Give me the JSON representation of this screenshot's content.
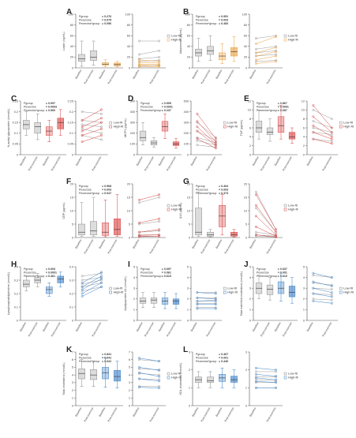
{
  "chart_data": [
    {
      "letter": "A",
      "type": "box",
      "ylabel": "Leptin (ng/mL)",
      "ylim": [
        0,
        100
      ],
      "yticks": [
        0,
        20,
        40,
        60,
        80,
        100
      ],
      "stats": [
        {
          "label": "Pgroup",
          "value": "= 0.276"
        },
        {
          "label": "Pexercise",
          "value": "= 0.075"
        },
        {
          "label": "Pexercise*group",
          "value": "= 0.096"
        }
      ],
      "color": "#e8a040",
      "categories": [
        "Baseline",
        "Post-exercise",
        "Baseline",
        "Post-exercise"
      ],
      "boxes": [
        {
          "q1": 12,
          "med": 17,
          "q3": 25,
          "lo": 3,
          "hi": 50
        },
        {
          "q1": 14,
          "med": 20,
          "q3": 32,
          "lo": 5,
          "hi": 50
        },
        {
          "q1": 5,
          "med": 7,
          "q3": 10,
          "lo": 2,
          "hi": 15
        },
        {
          "q1": 4,
          "med": 6,
          "q3": 9,
          "lo": 2,
          "hi": 12
        }
      ],
      "legend": [
        "Low-fit",
        "High-fit"
      ]
    },
    {
      "letter": "B",
      "type": "box",
      "ylabel": "Adiponectin (µg/mL)",
      "ylim": [
        0,
        100
      ],
      "yticks": [
        0,
        20,
        40,
        60,
        80,
        100
      ],
      "stats": [
        {
          "label": "Pgroup",
          "value": "= 0.951"
        },
        {
          "label": "Pexercise",
          "value": "= 0.003"
        },
        {
          "label": "Pexercise*group",
          "value": "= 0.466"
        }
      ],
      "color": "#e8a040",
      "categories": [
        "Baseline",
        "Post-exercise",
        "Baseline",
        "Post-exercise"
      ],
      "boxes": [
        {
          "q1": 22,
          "med": 28,
          "q3": 35,
          "lo": 12,
          "hi": 55
        },
        {
          "q1": 25,
          "med": 32,
          "q3": 40,
          "lo": 14,
          "hi": 60
        },
        {
          "q1": 15,
          "med": 22,
          "q3": 28,
          "lo": 8,
          "hi": 45
        },
        {
          "q1": 22,
          "med": 30,
          "q3": 38,
          "lo": 12,
          "hi": 58
        }
      ],
      "legend": [
        "Low-fit",
        "High-fit"
      ]
    },
    {
      "letter": "C",
      "type": "box",
      "ylabel": "N-acetyl glycoprotein (mmol/L)",
      "ylim": [
        0,
        0.25
      ],
      "yticks": [
        0,
        0.05,
        0.1,
        0.15,
        0.2,
        0.25
      ],
      "stats": [
        {
          "label": "Pgroup",
          "value": "= 0.097"
        },
        {
          "label": "Pexercise",
          "value": "= 0.0003"
        },
        {
          "label": "Pexercise*group",
          "value": "= 0.960"
        }
      ],
      "color": "#d84040",
      "categories": [
        "Baseline",
        "Post-exercise",
        "Baseline",
        "Post-exercise"
      ],
      "boxes": [
        {
          "q1": 0.12,
          "med": 0.14,
          "q3": 0.16,
          "lo": 0.09,
          "hi": 0.2
        },
        {
          "q1": 0.1,
          "med": 0.13,
          "q3": 0.15,
          "lo": 0.07,
          "hi": 0.19
        },
        {
          "q1": 0.09,
          "med": 0.11,
          "q3": 0.13,
          "lo": 0.06,
          "hi": 0.16
        },
        {
          "q1": 0.12,
          "med": 0.15,
          "q3": 0.17,
          "lo": 0.09,
          "hi": 0.21
        }
      ],
      "legend": [
        "Low-fit",
        "High-fit"
      ]
    },
    {
      "letter": "D",
      "type": "box",
      "ylabel": "MCP1 (pg/mL)",
      "ylim": [
        0,
        500
      ],
      "yticks": [
        0,
        100,
        200,
        300,
        400,
        500
      ],
      "stats": [
        {
          "label": "Pgroup",
          "value": "= 0.905"
        },
        {
          "label": "Pexercise",
          "value": "= 0.0001"
        },
        {
          "label": "Pexercise*group",
          "value": "= 0.237"
        }
      ],
      "color": "#d84040",
      "categories": [
        "Baseline",
        "Post-exercise",
        "Baseline",
        "Post-exercise"
      ],
      "boxes": [
        {
          "q1": 130,
          "med": 160,
          "q3": 220,
          "lo": 90,
          "hi": 300
        },
        {
          "q1": 90,
          "med": 110,
          "q3": 130,
          "lo": 70,
          "hi": 160
        },
        {
          "q1": 220,
          "med": 260,
          "q3": 310,
          "lo": 150,
          "hi": 380
        },
        {
          "q1": 85,
          "med": 100,
          "q3": 120,
          "lo": 60,
          "hi": 150
        }
      ],
      "legend": [
        "Low-fit",
        "High-fit"
      ]
    },
    {
      "letter": "E",
      "type": "box",
      "ylabel": "TNF (pg/mL)",
      "ylim": [
        0,
        12
      ],
      "yticks": [
        0,
        2,
        4,
        6,
        8,
        10,
        12
      ],
      "stats": [
        {
          "label": "Pgroup",
          "value": "= 0.867"
        },
        {
          "label": "Pexercise",
          "value": "= 0.0001"
        },
        {
          "label": "Pexercise*group",
          "value": "= 0.057"
        }
      ],
      "color": "#d84040",
      "categories": [
        "Baseline",
        "Post-exercise",
        "Baseline",
        "Post-exercise"
      ],
      "boxes": [
        {
          "q1": 5,
          "med": 6,
          "q3": 7.5,
          "lo": 3.5,
          "hi": 10
        },
        {
          "q1": 4.5,
          "med": 5,
          "q3": 6,
          "lo": 3,
          "hi": 8
        },
        {
          "q1": 5,
          "med": 6.5,
          "q3": 8.5,
          "lo": 3.5,
          "hi": 11
        },
        {
          "q1": 3.5,
          "med": 4,
          "q3": 5,
          "lo": 2.5,
          "hi": 6
        }
      ],
      "legend": [
        "Low-fit",
        "High-fit"
      ]
    },
    {
      "letter": "F",
      "type": "box",
      "ylabel": "CRP (µg/mL)",
      "ylim": [
        0,
        20
      ],
      "yticks": [
        0,
        5,
        10,
        15,
        20
      ],
      "stats": [
        {
          "label": "Pgroup",
          "value": "= 0.568"
        },
        {
          "label": "Pexercise",
          "value": "= 0.003"
        },
        {
          "label": "Pexercise*group",
          "value": "= 0.047"
        }
      ],
      "color": "#d84040",
      "categories": [
        "Baseline",
        "Post-exercise",
        "Baseline",
        "Post-exercise"
      ],
      "boxes": [
        {
          "q1": 1,
          "med": 2,
          "q3": 5,
          "lo": 0.5,
          "hi": 13
        },
        {
          "q1": 1,
          "med": 2.5,
          "q3": 6,
          "lo": 0.5,
          "hi": 15
        },
        {
          "q1": 0.8,
          "med": 2,
          "q3": 5.5,
          "lo": 0.3,
          "hi": 14
        },
        {
          "q1": 1,
          "med": 3,
          "q3": 7,
          "lo": 0.5,
          "hi": 16
        }
      ],
      "legend": [
        "Low-fit",
        "High-fit"
      ]
    },
    {
      "letter": "G",
      "type": "box",
      "ylabel": "IL10 (pg/mL)",
      "ylim": [
        0,
        20
      ],
      "yticks": [
        0,
        5,
        10,
        15,
        20
      ],
      "stats": [
        {
          "label": "Pgroup",
          "value": "= 0.464"
        },
        {
          "label": "Pexercise",
          "value": "= 0.003"
        },
        {
          "label": "Pexercise*group",
          "value": "= 0.373"
        }
      ],
      "color": "#d84040",
      "categories": [
        "Baseline",
        "Post-exercise",
        "Baseline",
        "Post-exercise"
      ],
      "boxes": [
        {
          "q1": 1,
          "med": 2,
          "q3": 11,
          "lo": 0.5,
          "hi": 17
        },
        {
          "q1": 0.5,
          "med": 1,
          "q3": 2,
          "lo": 0.2,
          "hi": 3
        },
        {
          "q1": 4,
          "med": 8,
          "q3": 12,
          "lo": 1,
          "hi": 16
        },
        {
          "q1": 0.5,
          "med": 1,
          "q3": 2,
          "lo": 0.2,
          "hi": 3
        }
      ],
      "legend": [
        "Low-fit",
        "High-fit"
      ]
    },
    {
      "letter": "H",
      "type": "box",
      "ylabel": "Lysophosphatidylcholine (mmol/L)",
      "ylim": [
        0,
        0.4
      ],
      "yticks": [
        0,
        0.1,
        0.2,
        0.3,
        0.4
      ],
      "stats": [
        {
          "label": "Pgroup",
          "value": "= 0.603"
        },
        {
          "label": "Pexercise",
          "value": "= 0.0001"
        },
        {
          "label": "Pexercise*group",
          "value": "= 0.461"
        }
      ],
      "color": "#3a7fc4",
      "categories": [
        "Baseline",
        "Post-exercise",
        "Baseline",
        "Post-exercise"
      ],
      "boxes": [
        {
          "q1": 0.25,
          "med": 0.27,
          "q3": 0.3,
          "lo": 0.22,
          "hi": 0.33
        },
        {
          "q1": 0.28,
          "med": 0.3,
          "q3": 0.32,
          "lo": 0.25,
          "hi": 0.35
        },
        {
          "q1": 0.2,
          "med": 0.23,
          "q3": 0.25,
          "lo": 0.18,
          "hi": 0.28
        },
        {
          "q1": 0.28,
          "med": 0.31,
          "q3": 0.33,
          "lo": 0.25,
          "hi": 0.36
        }
      ],
      "legend": [
        "Low-fit",
        "High-fit"
      ]
    },
    {
      "letter": "I",
      "type": "box",
      "ylabel": "Apolipoprotein A1 (mmol/L)",
      "ylim": [
        0,
        5
      ],
      "yticks": [
        0,
        1,
        2,
        3,
        4,
        5
      ],
      "stats": [
        {
          "label": "Pgroup",
          "value": "= 0.697"
        },
        {
          "label": "Pexercise",
          "value": "= 0.061"
        },
        {
          "label": "Pexercise*group",
          "value": "= 0.610"
        }
      ],
      "color": "#3a7fc4",
      "categories": [
        "Baseline",
        "Post-exercise",
        "Baseline",
        "Post-exercise"
      ],
      "boxes": [
        {
          "q1": 1.6,
          "med": 1.8,
          "q3": 2.1,
          "lo": 1.2,
          "hi": 2.6
        },
        {
          "q1": 1.6,
          "med": 1.9,
          "q3": 2.1,
          "lo": 1.2,
          "hi": 2.6
        },
        {
          "q1": 1.5,
          "med": 1.8,
          "q3": 2.1,
          "lo": 1.1,
          "hi": 2.6
        },
        {
          "q1": 1.5,
          "med": 1.8,
          "q3": 2.0,
          "lo": 1.1,
          "hi": 2.5
        }
      ],
      "legend": [
        "Low-fit",
        "High-fit"
      ]
    },
    {
      "letter": "J",
      "type": "box",
      "ylabel": "Total esterified cholesterol (mmol/L)",
      "ylim": [
        0,
        5
      ],
      "yticks": [
        0,
        1,
        2,
        3,
        4,
        5
      ],
      "stats": [
        {
          "label": "Pgroup",
          "value": "= 0.637"
        },
        {
          "label": "Pexercise",
          "value": "= 0.001"
        },
        {
          "label": "Pexercise*group",
          "value": "= 0.610"
        }
      ],
      "color": "#3a7fc4",
      "categories": [
        "Baseline",
        "Post-exercise",
        "Baseline",
        "Post-exercise"
      ],
      "boxes": [
        {
          "q1": 2.5,
          "med": 3.0,
          "q3": 3.5,
          "lo": 2.0,
          "hi": 4.2
        },
        {
          "q1": 2.4,
          "med": 2.9,
          "q3": 3.3,
          "lo": 1.9,
          "hi": 4.0
        },
        {
          "q1": 2.5,
          "med": 3.0,
          "q3": 3.6,
          "lo": 1.8,
          "hi": 4.4
        },
        {
          "q1": 2.2,
          "med": 2.6,
          "q3": 3.2,
          "lo": 1.6,
          "hi": 4.0
        }
      ],
      "legend": [
        "Low-fit",
        "High-fit"
      ]
    },
    {
      "letter": "K",
      "type": "box",
      "ylabel": "Total cholesterol (mmol/L)",
      "ylim": [
        0,
        7
      ],
      "yticks": [
        0,
        1,
        2,
        3,
        4,
        5,
        6,
        7
      ],
      "stats": [
        {
          "label": "Pgroup",
          "value": "= 0.841"
        },
        {
          "label": "Pexercise",
          "value": "= 0.041"
        },
        {
          "label": "Pexercise*group",
          "value": "= 0.622"
        }
      ],
      "color": "#3a7fc4",
      "categories": [
        "Baseline",
        "Post-exercise",
        "Baseline",
        "Post-exercise"
      ],
      "boxes": [
        {
          "q1": 3.5,
          "med": 4.2,
          "q3": 4.8,
          "lo": 2.5,
          "hi": 6.0
        },
        {
          "q1": 3.4,
          "med": 4.0,
          "q3": 4.7,
          "lo": 2.5,
          "hi": 5.8
        },
        {
          "q1": 3.5,
          "med": 4.3,
          "q3": 5.0,
          "lo": 2.4,
          "hi": 6.2
        },
        {
          "q1": 3.2,
          "med": 3.8,
          "q3": 4.6,
          "lo": 2.3,
          "hi": 5.8
        }
      ],
      "legend": [
        "Low-fit",
        "High-fit"
      ]
    },
    {
      "letter": "L",
      "type": "box",
      "ylabel": "HDL cholesterol (mmol/L)",
      "ylim": [
        0,
        3
      ],
      "yticks": [
        0,
        1,
        2,
        3
      ],
      "stats": [
        {
          "label": "Pgroup",
          "value": "= 0.467"
        },
        {
          "label": "Pexercise",
          "value": "= 0.001"
        },
        {
          "label": "Pexercise*group",
          "value": "= 0.440"
        }
      ],
      "color": "#3a7fc4",
      "categories": [
        "Baseline",
        "Post-exercise",
        "Baseline",
        "Post-exercise"
      ],
      "boxes": [
        {
          "q1": 1.3,
          "med": 1.45,
          "q3": 1.6,
          "lo": 1.0,
          "hi": 1.9
        },
        {
          "q1": 1.3,
          "med": 1.4,
          "q3": 1.6,
          "lo": 1.0,
          "hi": 1.9
        },
        {
          "q1": 1.35,
          "med": 1.55,
          "q3": 1.75,
          "lo": 1.0,
          "hi": 2.1
        },
        {
          "q1": 1.3,
          "med": 1.45,
          "q3": 1.65,
          "lo": 1.0,
          "hi": 2.0
        }
      ],
      "legend": [
        "Low-fit",
        "High-fit"
      ]
    }
  ]
}
